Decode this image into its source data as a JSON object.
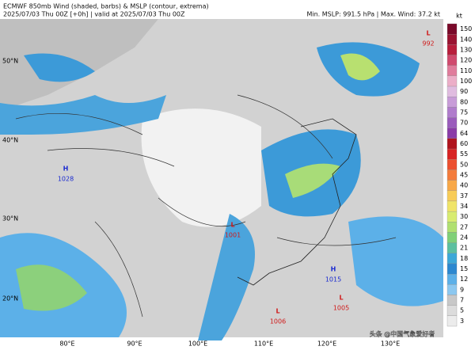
{
  "header": {
    "title": "ECMWF 850mb Wind (shaded, barbs) & MSLP (contour, extrema)",
    "time": "2025/07/03 Thu 00Z [+0h] | valid at 2025/07/03 Thu 00Z",
    "stats": "Min. MSLP: 991.5 hPa | Max. Wind: 37.2 kt"
  },
  "colorbar": {
    "unit": "kt",
    "levels": [
      150,
      140,
      130,
      120,
      110,
      100,
      90,
      80,
      75,
      70,
      64,
      60,
      55,
      50,
      45,
      40,
      37,
      34,
      30,
      27,
      24,
      21,
      18,
      15,
      12,
      9,
      7,
      5,
      3
    ],
    "colors": [
      "#7a0a2a",
      "#9a1432",
      "#b81e3c",
      "#d04a6e",
      "#e07c9c",
      "#ecaec8",
      "#e0bce0",
      "#c89cd8",
      "#b07ccc",
      "#9a5cbc",
      "#8a3ca8",
      "#b0141e",
      "#d82424",
      "#ec5030",
      "#f47c3c",
      "#f8a848",
      "#f8cc58",
      "#f0e468",
      "#d8ec70",
      "#b0e070",
      "#80d078",
      "#5cc0a0",
      "#3ca8d8",
      "#2c88d0",
      "#5cb0e8",
      "#8cc8f0",
      "#c8c8c8",
      "#dcdcdc",
      "#ececec"
    ]
  },
  "map": {
    "lat_labels": [
      "50°N",
      "40°N",
      "30°N",
      "20°N"
    ],
    "lon_labels": [
      "80°E",
      "90°E",
      "100°E",
      "110°E",
      "120°E",
      "130°E"
    ],
    "systems": [
      {
        "kind": "H",
        "pressure": 1028
      },
      {
        "kind": "L",
        "pressure": 1001
      },
      {
        "kind": "H",
        "pressure": 1015
      },
      {
        "kind": "L",
        "pressure": 1005
      },
      {
        "kind": "L",
        "pressure": 1006
      },
      {
        "kind": "L",
        "pressure": 992
      }
    ]
  },
  "watermark": "头条 @中国气象爱好者"
}
